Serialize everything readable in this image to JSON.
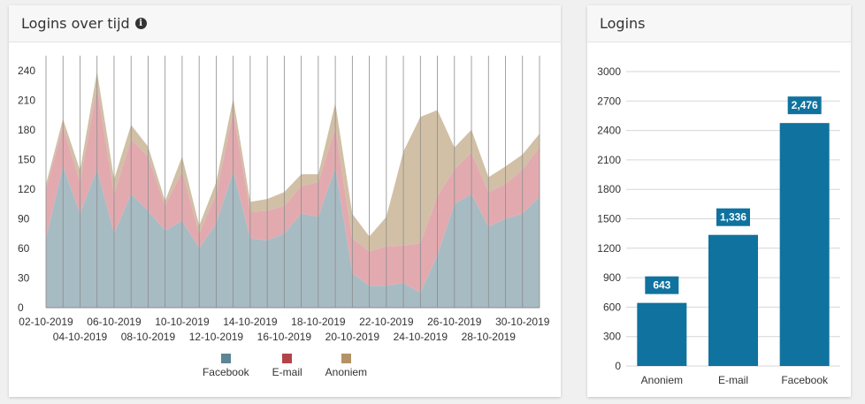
{
  "left_panel": {
    "title": "Logins over tijd",
    "info_icon": "info-circle-icon"
  },
  "right_panel": {
    "title": "Logins"
  },
  "colors": {
    "facebook": "#a7bbc3",
    "email": "#e2aaaf",
    "anoniem": "#d1c0a6",
    "facebook_legend": "#5c8595",
    "email_legend": "#b24449",
    "anoniem_legend": "#b39265",
    "bar": "#10729e",
    "label_bg": "#10729e"
  },
  "chart_data": [
    {
      "type": "area",
      "title": "Logins over tijd",
      "stacked": true,
      "x": [
        "02-10-2019",
        "03-10-2019",
        "04-10-2019",
        "05-10-2019",
        "06-10-2019",
        "07-10-2019",
        "08-10-2019",
        "09-10-2019",
        "10-10-2019",
        "11-10-2019",
        "12-10-2019",
        "13-10-2019",
        "14-10-2019",
        "15-10-2019",
        "16-10-2019",
        "17-10-2019",
        "18-10-2019",
        "19-10-2019",
        "20-10-2019",
        "21-10-2019",
        "22-10-2019",
        "23-10-2019",
        "24-10-2019",
        "25-10-2019",
        "26-10-2019",
        "27-10-2019",
        "28-10-2019",
        "29-10-2019",
        "30-10-2019",
        "31-10-2019"
      ],
      "x_tick_labels_row1": [
        "02-10-2019",
        "06-10-2019",
        "10-10-2019",
        "14-10-2019",
        "18-10-2019",
        "22-10-2019",
        "26-10-2019",
        "30-10-2019"
      ],
      "x_tick_labels_row2": [
        "04-10-2019",
        "08-10-2019",
        "12-10-2019",
        "16-10-2019",
        "20-10-2019",
        "24-10-2019",
        "28-10-2019"
      ],
      "series": [
        {
          "name": "Facebook",
          "values": [
            70,
            143,
            95,
            140,
            75,
            115,
            98,
            78,
            88,
            60,
            85,
            138,
            70,
            68,
            75,
            95,
            92,
            142,
            35,
            22,
            22,
            25,
            15,
            53,
            105,
            115,
            82,
            90,
            95,
            112
          ]
        },
        {
          "name": "E-mail",
          "values": [
            50,
            40,
            32,
            83,
            40,
            55,
            55,
            25,
            50,
            15,
            30,
            60,
            27,
            30,
            28,
            28,
            35,
            40,
            35,
            35,
            40,
            38,
            50,
            60,
            35,
            42,
            35,
            35,
            45,
            50
          ]
        },
        {
          "name": "Anoniem",
          "values": [
            5,
            8,
            12,
            16,
            15,
            15,
            10,
            5,
            15,
            8,
            12,
            14,
            10,
            12,
            14,
            12,
            8,
            25,
            25,
            15,
            30,
            95,
            128,
            87,
            22,
            23,
            15,
            18,
            15,
            14
          ]
        }
      ],
      "ylim": [
        0,
        255
      ],
      "y_ticks": [
        0,
        30,
        60,
        90,
        120,
        150,
        180,
        210,
        240
      ],
      "grid": "vertical"
    },
    {
      "type": "bar",
      "title": "Logins",
      "categories": [
        "Anoniem",
        "E-mail",
        "Facebook"
      ],
      "values": [
        643,
        1336,
        2476
      ],
      "value_labels": [
        "643",
        "1,336",
        "2,476"
      ],
      "ylim": [
        0,
        3000
      ],
      "y_ticks": [
        0,
        300,
        600,
        900,
        1200,
        1500,
        1800,
        2100,
        2400,
        2700,
        3000
      ],
      "grid": "horizontal"
    }
  ]
}
